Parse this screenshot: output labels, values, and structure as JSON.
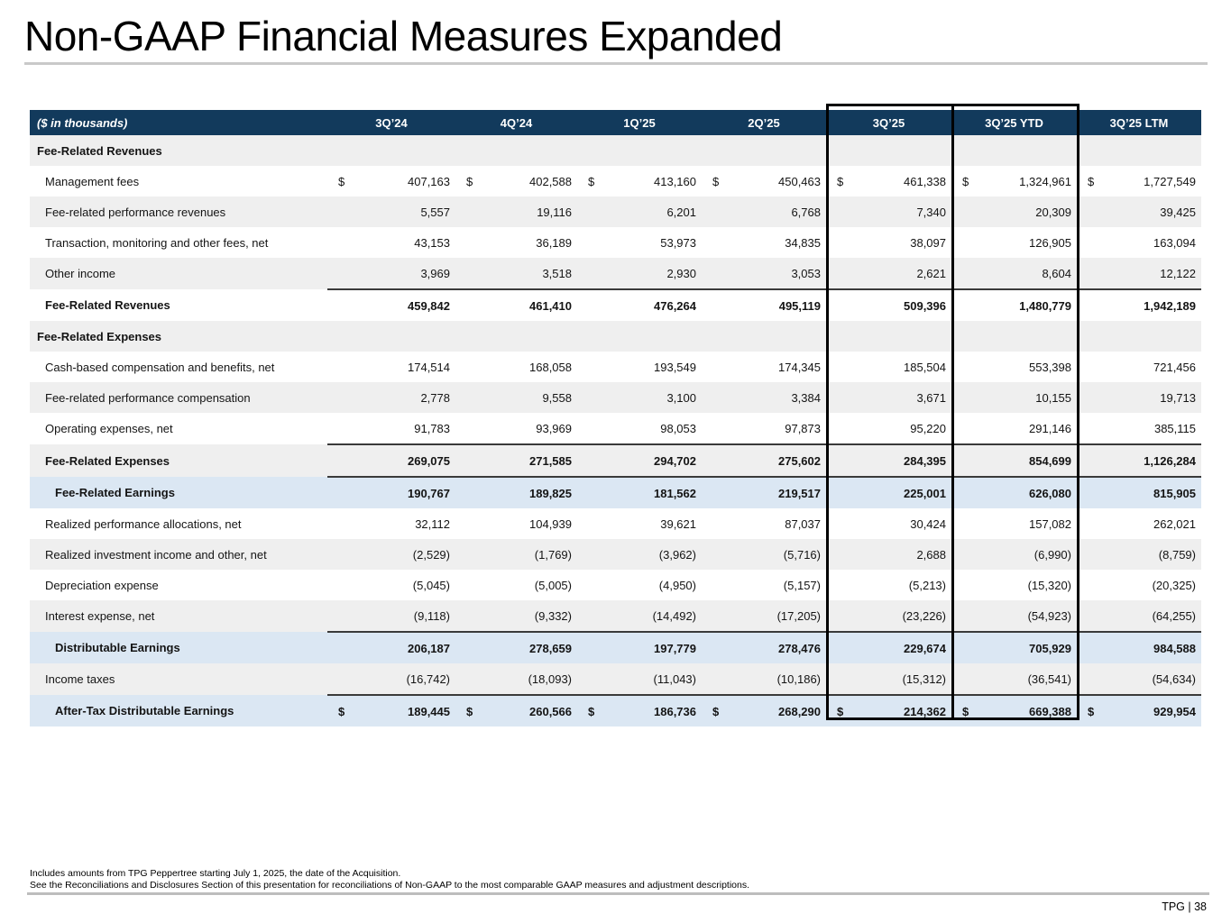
{
  "slide": {
    "title": "Non-GAAP Financial Measures Expanded",
    "footnote_1": "Includes amounts from TPG Peppertree starting July 1, 2025, the date of the Acquisition.",
    "footnote_2": "See the Reconciliations and Disclosures Section of this presentation for reconciliations of Non-GAAP to the most comparable GAAP measures and adjustment descriptions.",
    "page_label": "TPG | 38"
  },
  "colors": {
    "header_bg": "#123a5c",
    "header_text": "#ffffff",
    "row_gray": "#efefef",
    "row_white": "#ffffff",
    "row_blue": "#dbe7f3",
    "total_rule": "#3a3a3a",
    "highlight_border": "#000000"
  },
  "table": {
    "unit_label": "($ in thousands)",
    "currency_symbol": "$",
    "columns": [
      "3Q’24",
      "4Q’24",
      "1Q’25",
      "2Q’25",
      "3Q’25",
      "3Q’25 YTD",
      "3Q’25 LTM"
    ],
    "highlighted_columns": [
      "3Q’25",
      "3Q’25 YTD"
    ],
    "rows": [
      {
        "label": "Fee-Related Revenues",
        "style": "section",
        "shade": "gray",
        "dollar": false,
        "rule_top": false,
        "values": [
          "",
          "",
          "",
          "",
          "",
          "",
          ""
        ]
      },
      {
        "label": "Management fees",
        "style": "data",
        "shade": "white",
        "dollar": true,
        "rule_top": false,
        "values": [
          "407,163",
          "402,588",
          "413,160",
          "450,463",
          "461,338",
          "1,324,961",
          "1,727,549"
        ]
      },
      {
        "label": "Fee-related performance revenues",
        "style": "data",
        "shade": "gray",
        "dollar": false,
        "rule_top": false,
        "values": [
          "5,557",
          "19,116",
          "6,201",
          "6,768",
          "7,340",
          "20,309",
          "39,425"
        ]
      },
      {
        "label": "Transaction, monitoring and other fees, net",
        "style": "data",
        "shade": "white",
        "dollar": false,
        "rule_top": false,
        "values": [
          "43,153",
          "36,189",
          "53,973",
          "34,835",
          "38,097",
          "126,905",
          "163,094"
        ]
      },
      {
        "label": "Other income",
        "style": "data",
        "shade": "gray",
        "dollar": false,
        "rule_top": false,
        "values": [
          "3,969",
          "3,518",
          "2,930",
          "3,053",
          "2,621",
          "8,604",
          "12,122"
        ]
      },
      {
        "label": "Fee-Related Revenues",
        "style": "total",
        "shade": "white",
        "dollar": false,
        "rule_top": true,
        "values": [
          "459,842",
          "461,410",
          "476,264",
          "495,119",
          "509,396",
          "1,480,779",
          "1,942,189"
        ]
      },
      {
        "label": "Fee-Related Expenses",
        "style": "section",
        "shade": "gray",
        "dollar": false,
        "rule_top": false,
        "values": [
          "",
          "",
          "",
          "",
          "",
          "",
          ""
        ]
      },
      {
        "label": "Cash-based compensation and benefits, net",
        "style": "data",
        "shade": "white",
        "dollar": false,
        "rule_top": false,
        "values": [
          "174,514",
          "168,058",
          "193,549",
          "174,345",
          "185,504",
          "553,398",
          "721,456"
        ]
      },
      {
        "label": "Fee-related performance compensation",
        "style": "data",
        "shade": "gray",
        "dollar": false,
        "rule_top": false,
        "values": [
          "2,778",
          "9,558",
          "3,100",
          "3,384",
          "3,671",
          "10,155",
          "19,713"
        ]
      },
      {
        "label": "Operating expenses, net",
        "style": "data",
        "shade": "white",
        "dollar": false,
        "rule_top": false,
        "values": [
          "91,783",
          "93,969",
          "98,053",
          "97,873",
          "95,220",
          "291,146",
          "385,115"
        ]
      },
      {
        "label": "Fee-Related Expenses",
        "style": "total",
        "shade": "gray",
        "dollar": false,
        "rule_top": true,
        "values": [
          "269,075",
          "271,585",
          "294,702",
          "275,602",
          "284,395",
          "854,699",
          "1,126,284"
        ]
      },
      {
        "label": "Fee-Related Earnings",
        "style": "blue",
        "shade": "blue",
        "dollar": false,
        "rule_top": true,
        "values": [
          "190,767",
          "189,825",
          "181,562",
          "219,517",
          "225,001",
          "626,080",
          "815,905"
        ]
      },
      {
        "label": "Realized performance allocations, net",
        "style": "data",
        "shade": "white",
        "dollar": false,
        "rule_top": false,
        "values": [
          "32,112",
          "104,939",
          "39,621",
          "87,037",
          "30,424",
          "157,082",
          "262,021"
        ]
      },
      {
        "label": "Realized investment income and other, net",
        "style": "data",
        "shade": "gray",
        "dollar": false,
        "rule_top": false,
        "values": [
          "(2,529)",
          "(1,769)",
          "(3,962)",
          "(5,716)",
          "2,688",
          "(6,990)",
          "(8,759)"
        ]
      },
      {
        "label": "Depreciation expense",
        "style": "data",
        "shade": "white",
        "dollar": false,
        "rule_top": false,
        "values": [
          "(5,045)",
          "(5,005)",
          "(4,950)",
          "(5,157)",
          "(5,213)",
          "(15,320)",
          "(20,325)"
        ]
      },
      {
        "label": "Interest expense, net",
        "style": "data",
        "shade": "gray",
        "dollar": false,
        "rule_top": false,
        "values": [
          "(9,118)",
          "(9,332)",
          "(14,492)",
          "(17,205)",
          "(23,226)",
          "(54,923)",
          "(64,255)"
        ]
      },
      {
        "label": "Distributable Earnings",
        "style": "blue",
        "shade": "blue",
        "dollar": false,
        "rule_top": true,
        "values": [
          "206,187",
          "278,659",
          "197,779",
          "278,476",
          "229,674",
          "705,929",
          "984,588"
        ]
      },
      {
        "label": "Income taxes",
        "style": "data",
        "shade": "gray",
        "dollar": false,
        "rule_top": false,
        "values": [
          "(16,742)",
          "(18,093)",
          "(11,043)",
          "(10,186)",
          "(15,312)",
          "(36,541)",
          "(54,634)"
        ]
      },
      {
        "label": "After-Tax Distributable Earnings",
        "style": "blue",
        "shade": "blue",
        "dollar": true,
        "rule_top": true,
        "values": [
          "189,445",
          "260,566",
          "186,736",
          "268,290",
          "214,362",
          "669,388",
          "929,954"
        ]
      }
    ]
  }
}
